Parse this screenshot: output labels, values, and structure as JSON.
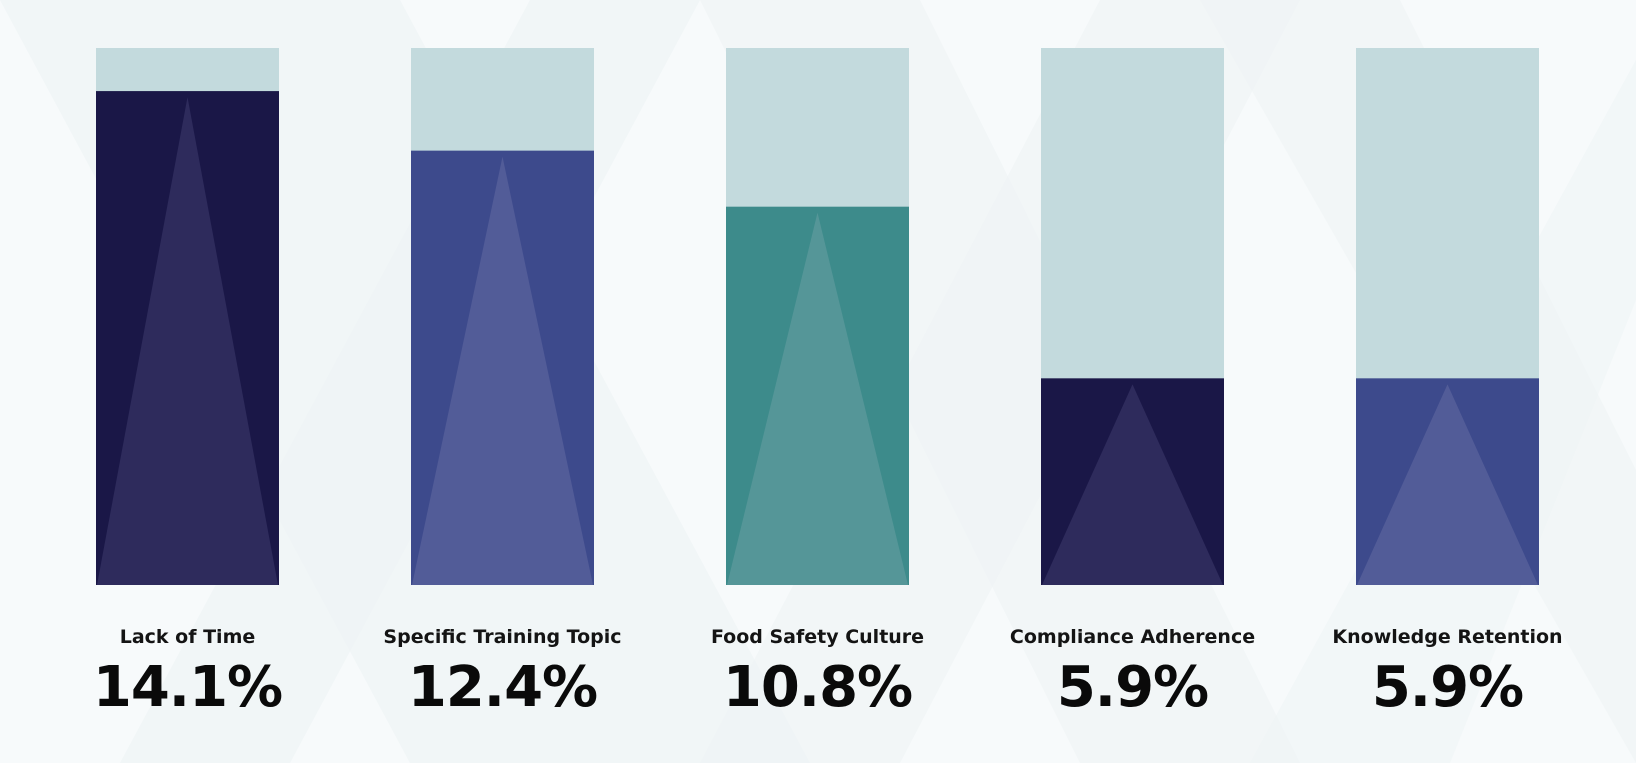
{
  "chart_data": {
    "type": "bar",
    "title": "",
    "xlabel": "",
    "ylabel": "",
    "ylim": [
      0,
      15.33
    ],
    "categories": [
      "Lack of Time",
      "Specific Training Topic",
      "Food Safety Culture",
      "Compliance Adherence",
      "Knowledge Retention"
    ],
    "values": [
      14.1,
      12.4,
      10.8,
      5.9,
      5.9
    ],
    "value_labels": [
      "14.1%",
      "12.4%",
      "10.8%",
      "5.9%",
      "5.9%"
    ],
    "colors": [
      "#1a1747",
      "#3d4a8c",
      "#3d8b8b",
      "#1a1747",
      "#3d4a8c"
    ],
    "highlight_colors": [
      "#2e2b5c",
      "#525c98",
      "#559698",
      "#2e2b5c",
      "#525c98"
    ],
    "track_color": "#c3dadd",
    "grid": false
  }
}
